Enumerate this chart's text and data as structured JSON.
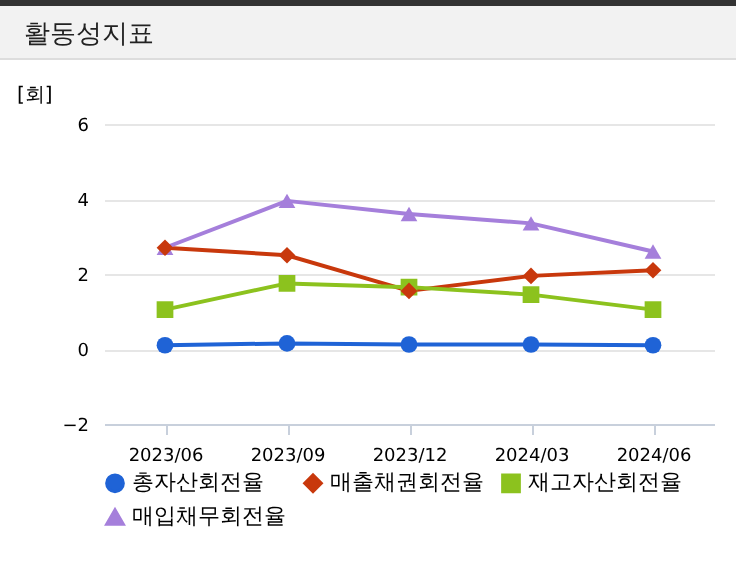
{
  "chart_data": {
    "type": "line",
    "title": "활동성지표",
    "ylabel": "[회]",
    "categories": [
      "2023/06",
      "2023/09",
      "2023/12",
      "2024/03",
      "2024/06"
    ],
    "series": [
      {
        "name": "총자산회전율",
        "color": "#1f63d6",
        "marker": "circle",
        "values": [
          0.1,
          0.15,
          0.12,
          0.12,
          0.1
        ]
      },
      {
        "name": "매출채권회전율",
        "color": "#c8380c",
        "marker": "diamond",
        "values": [
          2.7,
          2.5,
          1.55,
          1.95,
          2.1
        ]
      },
      {
        "name": "재고자산회전율",
        "color": "#8cc21e",
        "marker": "square",
        "values": [
          1.05,
          1.75,
          1.65,
          1.45,
          1.05
        ]
      },
      {
        "name": "매입채무회전율",
        "color": "#a57fdb",
        "marker": "triangle",
        "values": [
          2.7,
          3.95,
          3.6,
          3.35,
          2.6
        ]
      }
    ],
    "ylim": [
      -2,
      6
    ],
    "yticks": [
      -2,
      0,
      2,
      4,
      6
    ],
    "grid": "y",
    "legend": "bottom"
  }
}
